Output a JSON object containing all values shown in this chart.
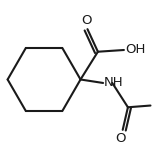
{
  "background": "#ffffff",
  "line_color": "#1a1a1a",
  "line_width": 1.5,
  "font_size": 9.5,
  "fig_width": 1.68,
  "fig_height": 1.59,
  "dpi": 100,
  "o_top_label": "O",
  "oh_label": "OH",
  "nh_label": "NH",
  "o_bottom_label": "O"
}
